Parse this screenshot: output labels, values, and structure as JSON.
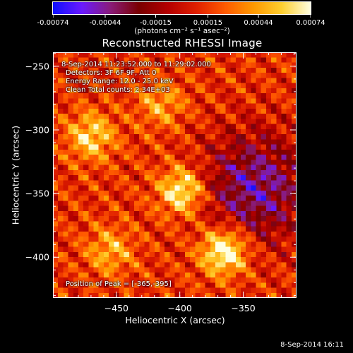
{
  "colorbar": {
    "tick_labels": [
      "-0.00074",
      "-0.00044",
      "-0.00015",
      "0.00015",
      "0.00044",
      "0.00074"
    ],
    "tick_values": [
      -0.00074,
      -0.00044,
      -0.00015,
      0.00015,
      0.00044,
      0.00074
    ],
    "range": [
      -0.00074,
      0.00074
    ],
    "units": "(photons cm⁻² s⁻¹ asec⁻²)",
    "colors": [
      "#1010ff",
      "#6b1aff",
      "#8a1c7a",
      "#7a0000",
      "#b40000",
      "#e02000",
      "#ff5a00",
      "#ff9a00",
      "#ffd030",
      "#ffffe0"
    ]
  },
  "chart_data": {
    "type": "heatmap",
    "title": "Reconstructed RHESSI Image",
    "xlabel": "Heliocentric X (arcsec)",
    "ylabel": "Heliocentric Y (arcsec)",
    "xlim": [
      -500,
      -308
    ],
    "ylim": [
      -432,
      -239
    ],
    "x_ticks": [
      -450,
      -400,
      -350
    ],
    "x_tick_labels": [
      "−450",
      "−400",
      "−350"
    ],
    "y_ticks": [
      -250,
      -300,
      -350,
      -400
    ],
    "y_tick_labels": [
      "−250",
      "−300",
      "−350",
      "−400"
    ],
    "pixel_size": 4,
    "peak": [
      -365,
      -395
    ],
    "sources": [
      {
        "x": -365,
        "y": -395,
        "intensity": 0.00074
      },
      {
        "x": -398,
        "y": -348,
        "intensity": 0.00062
      },
      {
        "x": -470,
        "y": -305,
        "intensity": 0.00048
      },
      {
        "x": -415,
        "y": -280,
        "intensity": 0.00032
      },
      {
        "x": -455,
        "y": -395,
        "intensity": 0.00036
      }
    ],
    "negative_region": {
      "x": -340,
      "y": -345,
      "intensity": -0.00055
    }
  },
  "annotations": {
    "line1": "8-Sep-2014 11:23:52.000 to 11:29:02.000",
    "line2": "Detectors: 3F 6F 9F, Att 0",
    "line3": "Energy Range: 12.0 - 25.0 keV",
    "line4": "Clean     Total counts: 2.34E+03",
    "peak_text": "Position of Peak = [-365,-395]"
  },
  "footer": "8-Sep-2014 16:11"
}
